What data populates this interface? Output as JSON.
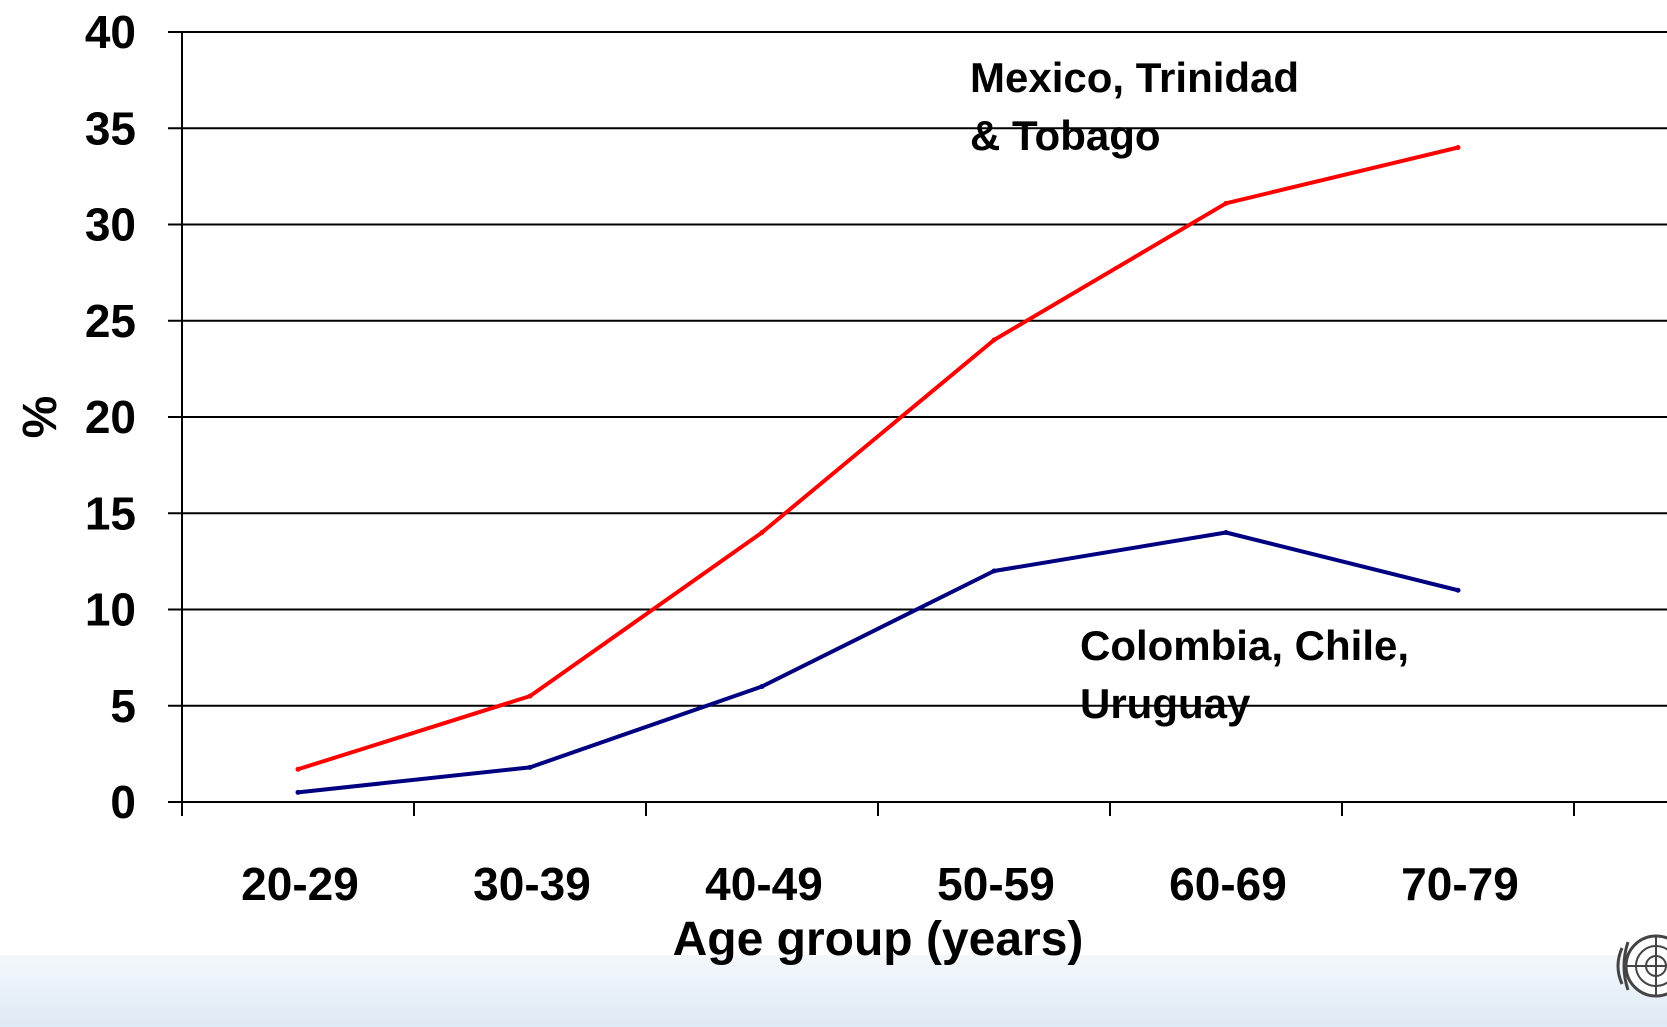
{
  "chart_data": {
    "type": "line",
    "categories": [
      "20-29",
      "30-39",
      "40-49",
      "50-59",
      "60-69",
      "70-79"
    ],
    "series": [
      {
        "name": "Mexico, Trinidad & Tobago",
        "name_lines": [
          "Mexico, Trinidad",
          "& Tobago"
        ],
        "color": "#ff0000",
        "values": [
          1.7,
          5.5,
          14.0,
          24.0,
          31.1,
          34.0
        ]
      },
      {
        "name": "Colombia, Chile, Uruguay",
        "name_lines": [
          "Colombia, Chile,",
          "Uruguay"
        ],
        "color": "#000080",
        "values": [
          0.5,
          1.8,
          6.0,
          12.0,
          14.0,
          11.0
        ]
      }
    ],
    "xlabel": "Age group (years)",
    "ylabel": "%",
    "ylim": [
      0,
      40
    ],
    "yticks": [
      0,
      5,
      10,
      15,
      20,
      25,
      30,
      35,
      40
    ],
    "grid": true,
    "legend": "inline-annotations"
  },
  "decor": {
    "emblem_icon": "un-emblem-icon",
    "band_color": "#dde9f4"
  }
}
